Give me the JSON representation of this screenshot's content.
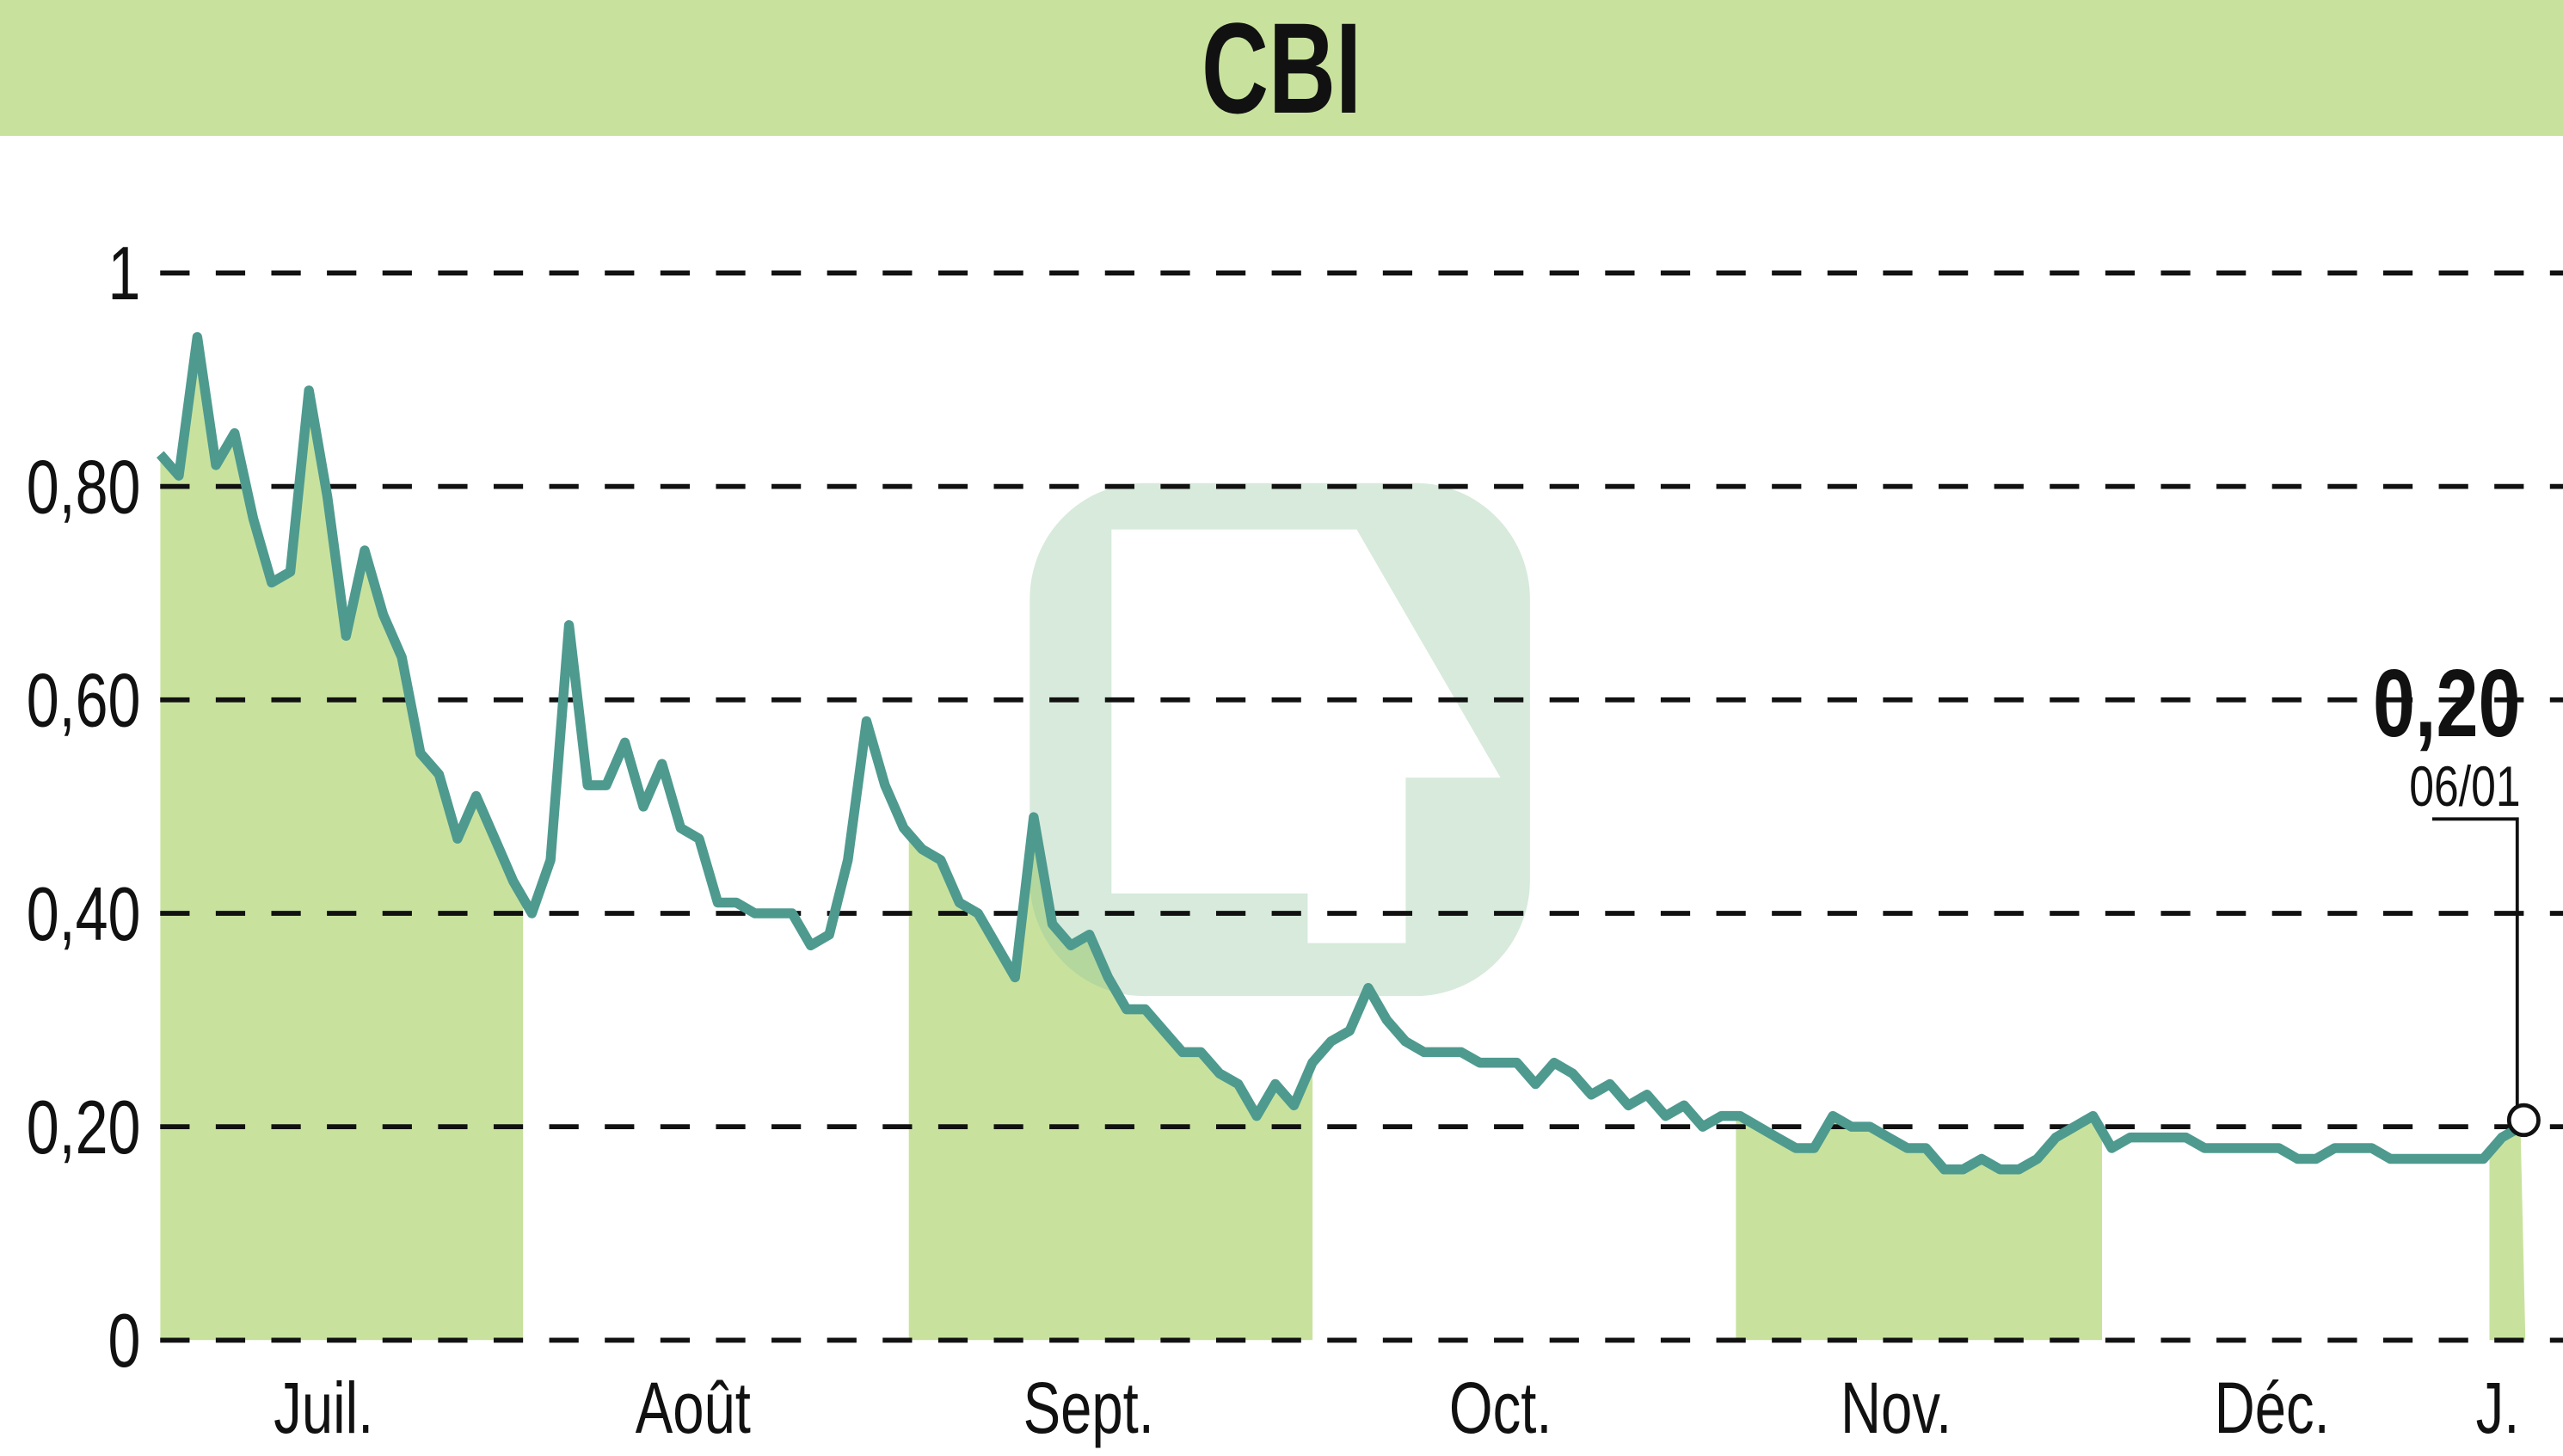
{
  "header": {
    "title": "CBI"
  },
  "last_value": {
    "price": "0,20",
    "date": "06/01"
  },
  "colors": {
    "band": "#c8e29e",
    "fill": "#c8e29e",
    "line": "#4e9a8f",
    "grid": "#111111"
  },
  "chart_data": {
    "type": "line",
    "title": "CBI",
    "xlabel": "",
    "ylabel": "",
    "ylim": [
      0,
      1
    ],
    "yticks": [
      "0",
      "0,20",
      "0,40",
      "0,60",
      "0,80",
      "1"
    ],
    "xticks": [
      "Juil.",
      "Août",
      "Sept.",
      "Oct.",
      "Nov.",
      "Déc.",
      "J."
    ],
    "grid": "horizontal dashed",
    "shaded_months": [
      "Juil.",
      "Sept.",
      "Nov.",
      "J."
    ],
    "annotation": {
      "value": "0,20",
      "date": "06/01"
    },
    "series": [
      {
        "name": "CBI",
        "values": [
          0.83,
          0.81,
          0.94,
          0.82,
          0.85,
          0.77,
          0.71,
          0.72,
          0.89,
          0.79,
          0.66,
          0.74,
          0.68,
          0.64,
          0.55,
          0.53,
          0.47,
          0.51,
          0.47,
          0.43,
          0.4,
          0.45,
          0.67,
          0.52,
          0.52,
          0.56,
          0.5,
          0.54,
          0.48,
          0.47,
          0.41,
          0.41,
          0.4,
          0.4,
          0.4,
          0.37,
          0.38,
          0.45,
          0.58,
          0.52,
          0.48,
          0.46,
          0.45,
          0.41,
          0.4,
          0.37,
          0.34,
          0.49,
          0.39,
          0.37,
          0.38,
          0.34,
          0.31,
          0.31,
          0.29,
          0.27,
          0.27,
          0.25,
          0.24,
          0.21,
          0.24,
          0.22,
          0.26,
          0.28,
          0.29,
          0.33,
          0.3,
          0.28,
          0.27,
          0.27,
          0.27,
          0.26,
          0.26,
          0.26,
          0.24,
          0.26,
          0.25,
          0.23,
          0.24,
          0.22,
          0.23,
          0.21,
          0.22,
          0.2,
          0.21,
          0.21,
          0.2,
          0.19,
          0.18,
          0.18,
          0.21,
          0.2,
          0.2,
          0.19,
          0.18,
          0.18,
          0.16,
          0.16,
          0.17,
          0.16,
          0.16,
          0.17,
          0.19,
          0.2,
          0.21,
          0.18,
          0.19,
          0.19,
          0.19,
          0.19,
          0.18,
          0.18,
          0.18,
          0.18,
          0.18,
          0.17,
          0.17,
          0.18,
          0.18,
          0.18,
          0.17,
          0.17,
          0.17,
          0.17,
          0.17,
          0.17,
          0.19,
          0.2
        ]
      }
    ]
  }
}
